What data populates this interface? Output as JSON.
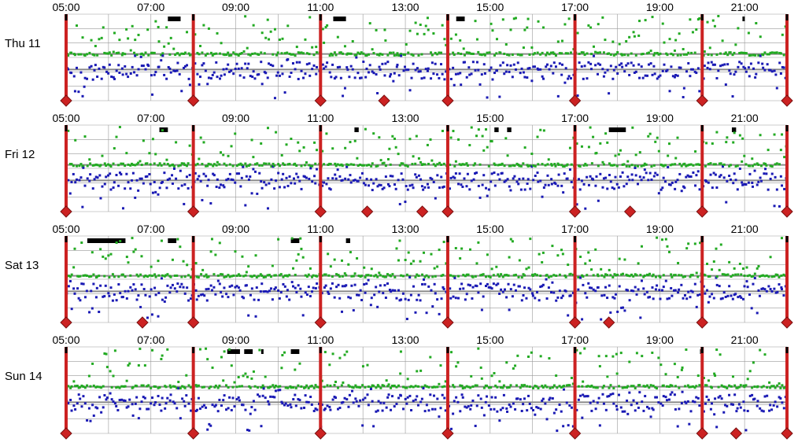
{
  "chart_data": {
    "type": "scatter",
    "colors": {
      "green_series": "#22aa22",
      "blue_series": "#1a1ab4",
      "marker": "#cc2222",
      "event_bar": "#000000",
      "grid": "#999999",
      "reference_line": "#8a8a8a"
    },
    "x_ticks": [
      "05:00",
      "07:00",
      "09:00",
      "11:00",
      "13:00",
      "15:00",
      "17:00",
      "19:00",
      "21:00"
    ],
    "xlim_hours": [
      5,
      22
    ],
    "grid": true,
    "panels": [
      {
        "label": "Thu 11",
        "marker_lines": [
          5.0,
          8.0,
          11.0,
          14.0,
          17.0,
          20.0,
          22.0
        ],
        "extra_diamonds": [
          12.5
        ],
        "event_bars": [
          [
            7.4,
            7.7
          ],
          [
            11.3,
            11.6
          ],
          [
            14.2,
            14.4
          ],
          [
            20.95,
            21.0
          ]
        ],
        "green_level": 0.54,
        "blue_level": 0.36
      },
      {
        "label": "Fri 12",
        "marker_lines": [
          5.0,
          8.0,
          11.0,
          14.0,
          17.0,
          20.0,
          22.0
        ],
        "extra_diamonds": [
          12.1,
          13.4,
          18.3
        ],
        "event_bars": [
          [
            7.2,
            7.4
          ],
          [
            17.8,
            18.2
          ],
          [
            15.1,
            15.2
          ],
          [
            15.4,
            15.5
          ],
          [
            20.7,
            20.8
          ],
          [
            11.8,
            11.9
          ]
        ],
        "green_level": 0.54,
        "blue_level": 0.36
      },
      {
        "label": "Sat 13",
        "marker_lines": [
          5.0,
          8.0,
          11.0,
          14.0,
          17.0,
          20.0,
          22.0
        ],
        "extra_diamonds": [
          6.8,
          17.8
        ],
        "event_bars": [
          [
            5.5,
            6.4
          ],
          [
            7.4,
            7.6
          ],
          [
            10.3,
            10.5
          ],
          [
            11.6,
            11.7
          ]
        ],
        "green_level": 0.54,
        "blue_level": 0.36
      },
      {
        "label": "Sun 14",
        "marker_lines": [
          5.0,
          8.0,
          11.0,
          14.0,
          17.0,
          20.0,
          22.0
        ],
        "extra_diamonds": [
          20.8
        ],
        "event_bars": [
          [
            8.8,
            9.1
          ],
          [
            9.2,
            9.4
          ],
          [
            9.6,
            9.65
          ],
          [
            10.3,
            10.5
          ],
          [
            19.95,
            20.0
          ]
        ],
        "green_level": 0.54,
        "blue_level": 0.36
      }
    ]
  }
}
